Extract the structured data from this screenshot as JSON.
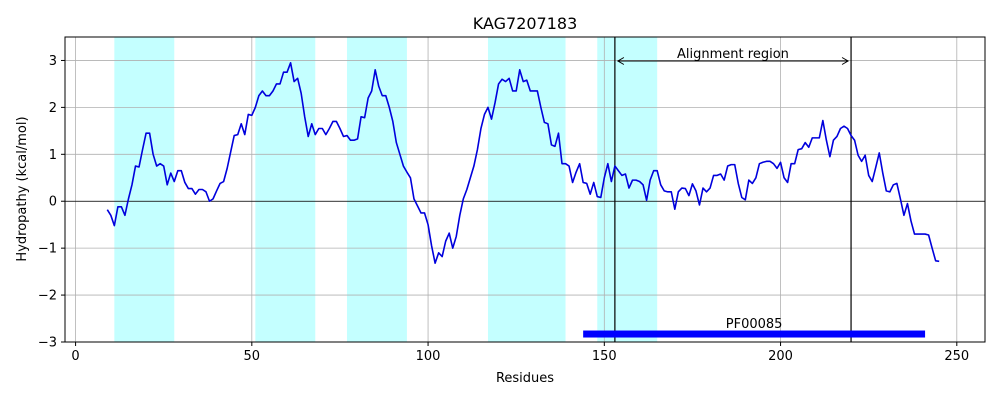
{
  "chart_data": {
    "type": "line",
    "title": "KAG7207183",
    "xlabel": "Residues",
    "ylabel": "Hydropathy (kcal/mol)",
    "xlim": [
      -3,
      258
    ],
    "ylim": [
      -3,
      3.5
    ],
    "xticks": [
      0,
      50,
      100,
      150,
      200,
      250
    ],
    "yticks": [
      -3,
      -2,
      -1,
      0,
      1,
      2,
      3
    ],
    "xtick_labels": [
      "0",
      "50",
      "100",
      "150",
      "200",
      "250"
    ],
    "ytick_labels": [
      "−3",
      "−2",
      "−1",
      "0",
      "1",
      "2",
      "3"
    ],
    "grid": true,
    "line_color": "#0000dd",
    "highlight_color": "#c4ffff",
    "transmembrane_regions": [
      [
        11,
        28
      ],
      [
        51,
        68
      ],
      [
        77,
        94
      ],
      [
        117,
        139
      ],
      [
        148,
        165
      ]
    ],
    "alignment_region": {
      "label": "Alignment region",
      "start": 153,
      "end": 220
    },
    "domain": {
      "label": "PF00085",
      "start": 144,
      "end": 241,
      "y": -2.83,
      "color": "#0000ff"
    },
    "series": [
      {
        "x": [
          9,
          10,
          11,
          12,
          13,
          14,
          15,
          16,
          17,
          18,
          19,
          20,
          21,
          22,
          23,
          24,
          25,
          26,
          27,
          28,
          29,
          30,
          31,
          32,
          33,
          34,
          35,
          36,
          37,
          38,
          39,
          40,
          41,
          42,
          43,
          44,
          45,
          46,
          47,
          48,
          49,
          50,
          51,
          52,
          53,
          54,
          55,
          56,
          57,
          58,
          59,
          60,
          61,
          62,
          63,
          64,
          65,
          66,
          67,
          68,
          69,
          70,
          71,
          72,
          73,
          74,
          75,
          76,
          77,
          78,
          79,
          80,
          81,
          82,
          83,
          84,
          85,
          86,
          87,
          88,
          89,
          90,
          91,
          92,
          93,
          94,
          95,
          96,
          97,
          98,
          99,
          100,
          101,
          102,
          103,
          104,
          105,
          106,
          107,
          108,
          109,
          110,
          111,
          112,
          113,
          114,
          115,
          116,
          117,
          118,
          119,
          120,
          121,
          122,
          123,
          124,
          125,
          126,
          127,
          128,
          129,
          130,
          131,
          132,
          133,
          134,
          135,
          136,
          137,
          138,
          139,
          140,
          141,
          142,
          143,
          144,
          145,
          146,
          147,
          148,
          149,
          150,
          151,
          152,
          153,
          154,
          155,
          156,
          157,
          158,
          159,
          160,
          161,
          162,
          163,
          164,
          165,
          166,
          167,
          168,
          169,
          170,
          171,
          172,
          173,
          174,
          175,
          176,
          177,
          178,
          179,
          180,
          181,
          182,
          183,
          184,
          185,
          186,
          187,
          188,
          189,
          190,
          191,
          192,
          193,
          194,
          195,
          196,
          197,
          198,
          199,
          200,
          201,
          202,
          203,
          204,
          205,
          206,
          207,
          208,
          209,
          210,
          211,
          212,
          213,
          214,
          215,
          216,
          217,
          218,
          219,
          220,
          221,
          222,
          223,
          224,
          225,
          226,
          227,
          228,
          229,
          230,
          231,
          232,
          233,
          234,
          235,
          236,
          237,
          238,
          239,
          240,
          241,
          242,
          243,
          244,
          245
        ],
        "y": [
          -0.18,
          -0.3,
          -0.52,
          -0.12,
          -0.12,
          -0.3,
          0.05,
          0.35,
          0.75,
          0.73,
          1.1,
          1.45,
          1.45,
          1.0,
          0.75,
          0.8,
          0.75,
          0.35,
          0.6,
          0.42,
          0.65,
          0.65,
          0.4,
          0.27,
          0.27,
          0.15,
          0.25,
          0.25,
          0.2,
          0.0,
          0.05,
          0.22,
          0.38,
          0.42,
          0.7,
          1.05,
          1.4,
          1.42,
          1.65,
          1.42,
          1.85,
          1.83,
          2.0,
          2.25,
          2.35,
          2.25,
          2.25,
          2.35,
          2.5,
          2.5,
          2.75,
          2.75,
          2.95,
          2.55,
          2.62,
          2.3,
          1.8,
          1.38,
          1.65,
          1.42,
          1.55,
          1.55,
          1.42,
          1.55,
          1.7,
          1.7,
          1.55,
          1.38,
          1.4,
          1.3,
          1.3,
          1.33,
          1.8,
          1.78,
          2.2,
          2.35,
          2.8,
          2.45,
          2.25,
          2.25,
          2.0,
          1.7,
          1.25,
          1.0,
          0.75,
          0.62,
          0.5,
          0.05,
          -0.1,
          -0.25,
          -0.25,
          -0.5,
          -0.95,
          -1.32,
          -1.1,
          -1.18,
          -0.85,
          -0.68,
          -1.0,
          -0.75,
          -0.3,
          0.05,
          0.25,
          0.5,
          0.75,
          1.1,
          1.55,
          1.85,
          2.0,
          1.75,
          2.1,
          2.5,
          2.6,
          2.55,
          2.62,
          2.35,
          2.35,
          2.8,
          2.55,
          2.58,
          2.35,
          2.35,
          2.35,
          2.0,
          1.68,
          1.65,
          1.2,
          1.17,
          1.45,
          0.8,
          0.8,
          0.75,
          0.4,
          0.62,
          0.8,
          0.4,
          0.38,
          0.15,
          0.4,
          0.1,
          0.08,
          0.5,
          0.8,
          0.42,
          0.75,
          0.65,
          0.55,
          0.58,
          0.28,
          0.45,
          0.45,
          0.42,
          0.35,
          0.02,
          0.45,
          0.65,
          0.65,
          0.35,
          0.22,
          0.2,
          0.2,
          -0.17,
          0.2,
          0.28,
          0.27,
          0.12,
          0.37,
          0.22,
          -0.08,
          0.28,
          0.2,
          0.28,
          0.55,
          0.55,
          0.58,
          0.45,
          0.75,
          0.78,
          0.78,
          0.38,
          0.08,
          0.03,
          0.45,
          0.38,
          0.5,
          0.8,
          0.83,
          0.85,
          0.85,
          0.8,
          0.7,
          0.83,
          0.5,
          0.4,
          0.8,
          0.8,
          1.1,
          1.12,
          1.25,
          1.15,
          1.35,
          1.35,
          1.35,
          1.72,
          1.3,
          0.95,
          1.3,
          1.38,
          1.55,
          1.6,
          1.55,
          1.4,
          1.3,
          0.98,
          0.85,
          0.98,
          0.55,
          0.42,
          0.72,
          1.03,
          0.6,
          0.22,
          0.2,
          0.35,
          0.38,
          0.05,
          -0.3,
          -0.05,
          -0.42,
          -0.7,
          -0.7,
          -0.7,
          -0.7,
          -0.72,
          -1.0,
          -1.27,
          -1.28
        ]
      }
    ]
  }
}
